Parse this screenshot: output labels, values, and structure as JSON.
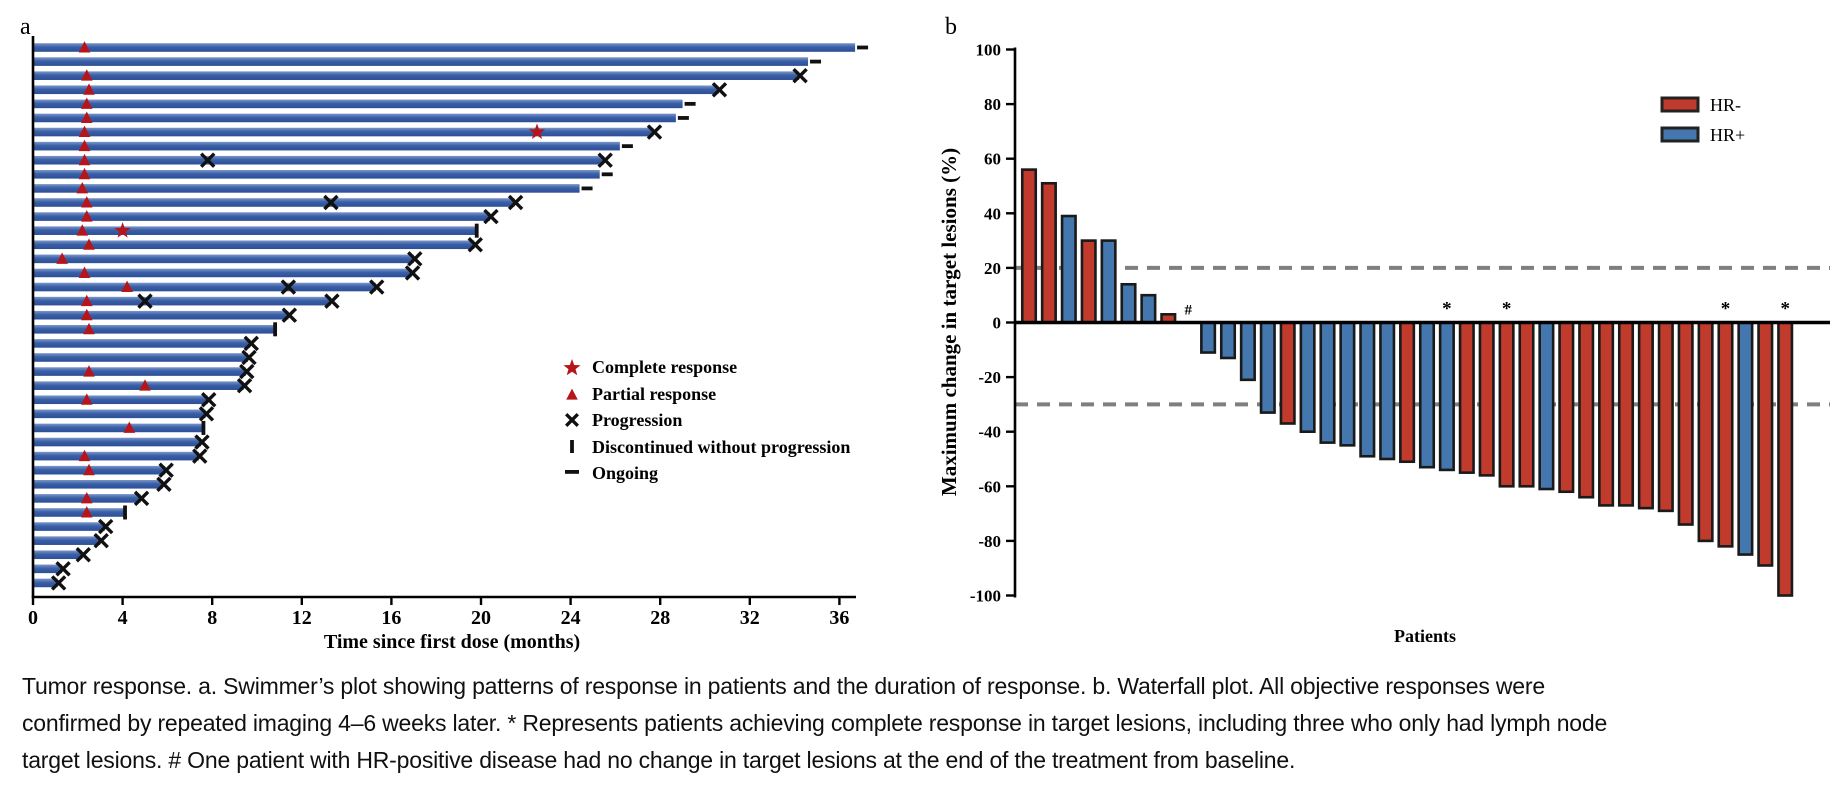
{
  "caption": "Tumor response. a. Swimmer’s plot showing patterns of response in patients and the duration of response. b. Waterfall plot. All objective responses were confirmed by repeated imaging 4–6 weeks later. * Represents patients achieving complete response in target lesions, including three who only had lymph node target lesions. # One patient with HR-positive disease had no change in target lesions at the end of the treatment from baseline.",
  "chart_data": [
    {
      "type": "bar",
      "subtype": "swimmer",
      "panel": "a",
      "xlabel": "Time since first dose (months)",
      "x_ticks": [
        0,
        4,
        8,
        12,
        16,
        20,
        24,
        28,
        32,
        36
      ],
      "xlim": [
        0,
        37.5
      ],
      "grid": false,
      "colors": {
        "bar": "#3a5fa6",
        "bar_light": "#7b97c9",
        "bar_dark": "#2c4f96",
        "marker_red": "#b5151b",
        "marker_black": "#111111"
      },
      "legend": [
        {
          "marker": "star",
          "label": "Complete response"
        },
        {
          "marker": "triangle",
          "label": "Partial response"
        },
        {
          "marker": "x",
          "label": "Progression"
        },
        {
          "marker": "tick",
          "label": "Discontinued without progression"
        },
        {
          "marker": "dash",
          "label": "Ongoing"
        }
      ],
      "patients": [
        {
          "duration": 36.7,
          "pr": 2.3,
          "cr": null,
          "progressions": [],
          "end": "ongoing"
        },
        {
          "duration": 34.6,
          "pr": null,
          "cr": null,
          "progressions": [],
          "end": "ongoing"
        },
        {
          "duration": 34.2,
          "pr": 2.4,
          "cr": null,
          "progressions": [],
          "end": "progression"
        },
        {
          "duration": 30.6,
          "pr": 2.5,
          "cr": null,
          "progressions": [],
          "end": "progression"
        },
        {
          "duration": 29.0,
          "pr": 2.4,
          "cr": null,
          "progressions": [],
          "end": "ongoing"
        },
        {
          "duration": 28.7,
          "pr": 2.4,
          "cr": null,
          "progressions": [],
          "end": "ongoing"
        },
        {
          "duration": 27.7,
          "pr": 2.3,
          "cr": 22.5,
          "progressions": [],
          "end": "progression"
        },
        {
          "duration": 26.2,
          "pr": 2.3,
          "cr": null,
          "progressions": [],
          "end": "ongoing"
        },
        {
          "duration": 25.5,
          "pr": 2.3,
          "cr": null,
          "progressions": [
            7.8
          ],
          "end": "progression"
        },
        {
          "duration": 25.3,
          "pr": 2.3,
          "cr": null,
          "progressions": [],
          "end": "ongoing"
        },
        {
          "duration": 24.4,
          "pr": 2.2,
          "cr": null,
          "progressions": [],
          "end": "ongoing"
        },
        {
          "duration": 21.5,
          "pr": 2.4,
          "cr": null,
          "progressions": [
            13.3
          ],
          "end": "progression"
        },
        {
          "duration": 20.4,
          "pr": 2.4,
          "cr": null,
          "progressions": [],
          "end": "progression"
        },
        {
          "duration": 19.8,
          "pr": 2.2,
          "cr": 4.0,
          "progressions": [],
          "end": "discontinued"
        },
        {
          "duration": 19.7,
          "pr": 2.5,
          "cr": null,
          "progressions": [],
          "end": "progression"
        },
        {
          "duration": 17.0,
          "pr": 1.3,
          "cr": null,
          "progressions": [],
          "end": "progression"
        },
        {
          "duration": 16.9,
          "pr": 2.3,
          "cr": null,
          "progressions": [],
          "end": "progression"
        },
        {
          "duration": 15.3,
          "pr": 4.2,
          "cr": null,
          "progressions": [
            11.4
          ],
          "end": "progression"
        },
        {
          "duration": 13.3,
          "pr": 2.4,
          "cr": null,
          "progressions": [
            5.0
          ],
          "end": "progression"
        },
        {
          "duration": 11.4,
          "pr": 2.4,
          "cr": null,
          "progressions": [],
          "end": "progression"
        },
        {
          "duration": 10.8,
          "pr": 2.5,
          "cr": null,
          "progressions": [],
          "end": "discontinued"
        },
        {
          "duration": 9.7,
          "pr": null,
          "cr": null,
          "progressions": [],
          "end": "progression"
        },
        {
          "duration": 9.6,
          "pr": null,
          "cr": null,
          "progressions": [],
          "end": "progression"
        },
        {
          "duration": 9.5,
          "pr": 2.5,
          "cr": null,
          "progressions": [],
          "end": "progression"
        },
        {
          "duration": 9.4,
          "pr": 5.0,
          "cr": null,
          "progressions": [],
          "end": "progression"
        },
        {
          "duration": 7.8,
          "pr": 2.4,
          "cr": null,
          "progressions": [],
          "end": "progression"
        },
        {
          "duration": 7.7,
          "pr": null,
          "cr": null,
          "progressions": [],
          "end": "progression"
        },
        {
          "duration": 7.6,
          "pr": 4.3,
          "cr": null,
          "progressions": [],
          "end": "discontinued"
        },
        {
          "duration": 7.5,
          "pr": null,
          "cr": null,
          "progressions": [],
          "end": "progression"
        },
        {
          "duration": 7.4,
          "pr": 2.3,
          "cr": null,
          "progressions": [],
          "end": "progression"
        },
        {
          "duration": 5.9,
          "pr": 2.5,
          "cr": null,
          "progressions": [],
          "end": "progression"
        },
        {
          "duration": 5.8,
          "pr": null,
          "cr": null,
          "progressions": [],
          "end": "progression"
        },
        {
          "duration": 4.8,
          "pr": 2.4,
          "cr": null,
          "progressions": [],
          "end": "progression"
        },
        {
          "duration": 4.1,
          "pr": 2.4,
          "cr": null,
          "progressions": [],
          "end": "discontinued"
        },
        {
          "duration": 3.2,
          "pr": null,
          "cr": null,
          "progressions": [],
          "end": "progression"
        },
        {
          "duration": 3.0,
          "pr": null,
          "cr": null,
          "progressions": [],
          "end": "progression"
        },
        {
          "duration": 2.2,
          "pr": null,
          "cr": null,
          "progressions": [],
          "end": "progression"
        },
        {
          "duration": 1.3,
          "pr": null,
          "cr": null,
          "progressions": [],
          "end": "progression"
        },
        {
          "duration": 1.1,
          "pr": null,
          "cr": null,
          "progressions": [],
          "end": "progression"
        }
      ]
    },
    {
      "type": "bar",
      "subtype": "waterfall",
      "panel": "b",
      "ylabel": "Maximum change in target lesions (%)",
      "xlabel": "Patients",
      "ylim": [
        -100,
        100
      ],
      "y_ticks": [
        100,
        80,
        60,
        40,
        20,
        0,
        -20,
        -40,
        -60,
        -80,
        -100
      ],
      "reference_lines": [
        20,
        -30
      ],
      "reference_line_color": "#7f7f7f",
      "grid": false,
      "legend_position": "top-right",
      "legend": [
        {
          "name": "HR-",
          "color": "#c03b2c"
        },
        {
          "name": "HR+",
          "color": "#4377ae"
        }
      ],
      "values": [
        56,
        51,
        39,
        30,
        30,
        14,
        10,
        3,
        0,
        -11,
        -13,
        -21,
        -33,
        -37,
        -40,
        -44,
        -45,
        -49,
        -50,
        -51,
        -53,
        -54,
        -55,
        -56,
        -60,
        -60,
        -61,
        -62,
        -64,
        -67,
        -67,
        -68,
        -69,
        -74,
        -80,
        -82,
        -85,
        -89,
        -100
      ],
      "groups": [
        "HR-",
        "HR-",
        "HR+",
        "HR-",
        "HR+",
        "HR+",
        "HR+",
        "HR-",
        "HR+",
        "HR+",
        "HR+",
        "HR+",
        "HR+",
        "HR-",
        "HR+",
        "HR+",
        "HR+",
        "HR+",
        "HR+",
        "HR-",
        "HR+",
        "HR+",
        "HR-",
        "HR-",
        "HR-",
        "HR-",
        "HR+",
        "HR-",
        "HR-",
        "HR-",
        "HR-",
        "HR-",
        "HR-",
        "HR-",
        "HR-",
        "HR-",
        "HR+",
        "HR-",
        "HR-"
      ],
      "annotations": [
        {
          "index": 8,
          "text": "#"
        },
        {
          "index": 21,
          "text": "*"
        },
        {
          "index": 24,
          "text": "*"
        },
        {
          "index": 35,
          "text": "*"
        },
        {
          "index": 38,
          "text": "*"
        }
      ]
    }
  ]
}
